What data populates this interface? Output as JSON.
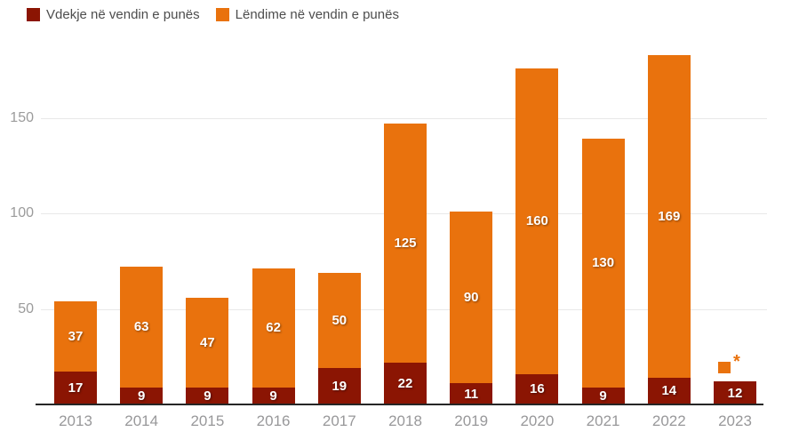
{
  "colors": {
    "deaths": "#8b1503",
    "injuries": "#e9720d",
    "bar_label": "#ffffff",
    "legend_text": "#4d4d4d",
    "axis_tick_label": "#98989a",
    "gridline": "#e8e8e8",
    "axis_line": "#262626",
    "background": "#ffffff"
  },
  "legend": [
    {
      "label": "Vdekje në vendin e punës",
      "color_key": "deaths"
    },
    {
      "label": "Lëndime në vendin e punës",
      "color_key": "injuries"
    }
  ],
  "chart_data": {
    "type": "bar",
    "stacked": true,
    "title": "",
    "xlabel": "",
    "ylabel": "",
    "categories": [
      "2013",
      "2014",
      "2015",
      "2016",
      "2017",
      "2018",
      "2019",
      "2020",
      "2021",
      "2022",
      "2023"
    ],
    "series": [
      {
        "name": "Vdekje në vendin e punës",
        "color_key": "deaths",
        "values": [
          17,
          9,
          9,
          9,
          19,
          22,
          11,
          16,
          9,
          14,
          12
        ]
      },
      {
        "name": "Lëndime në vendin e punës",
        "color_key": "injuries",
        "values": [
          37,
          63,
          47,
          62,
          50,
          125,
          90,
          160,
          130,
          169,
          null
        ]
      }
    ],
    "totals": [
      54,
      72,
      56,
      71,
      69,
      147,
      101,
      176,
      139,
      183,
      12
    ],
    "yticks": [
      50,
      100,
      150
    ],
    "ylim": [
      0,
      190
    ],
    "grid": true,
    "legend_position": "top-left",
    "annotation": {
      "category": "2023",
      "series": "Lëndime në vendin e punës",
      "symbol": "*"
    }
  }
}
